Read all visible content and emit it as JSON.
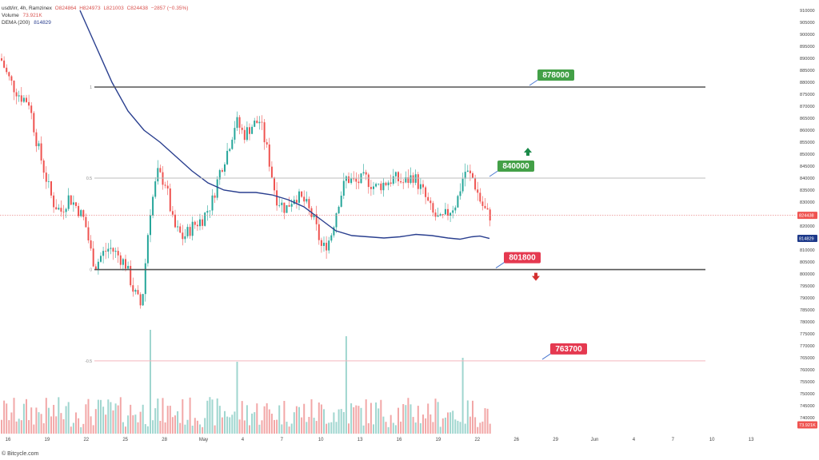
{
  "header": {
    "symbol_line": "usdt/irr, 4h, Ramzinex",
    "o": "O824864",
    "h": "H824973",
    "l": "L821003",
    "c": "C824438",
    "change": "−2857 (−0.35%)",
    "volume_label": "Volume",
    "volume_value": "73.921K",
    "ema_label": "DEMA (200)",
    "ema_value": "814829"
  },
  "footer": {
    "text": "© Bitcycle.com"
  },
  "chart_data": {
    "type": "candlestick",
    "price_axis": {
      "min": 735000,
      "max": 910000,
      "step": 5000,
      "current_price_label": "824438",
      "ema_label": "814829",
      "volume_label": "73.921K"
    },
    "time_axis": {
      "ticks": [
        "16",
        "19",
        "22",
        "25",
        "28",
        "May",
        "4",
        "7",
        "10",
        "13",
        "16",
        "19",
        "22",
        "26",
        "29",
        "Jun",
        "4",
        "7",
        "10",
        "13"
      ]
    },
    "levels": [
      {
        "value": 878000,
        "fib": "1",
        "label": "878000",
        "color": "#43a047",
        "line": "#555555"
      },
      {
        "value": 840000,
        "fib": "0.5",
        "label": "840000",
        "color": "#43a047",
        "line": "#bdbdbd",
        "arrow": "up"
      },
      {
        "value": 801800,
        "fib": "0",
        "label": "801800",
        "color": "#e53950",
        "line": "#555555",
        "arrow": "down"
      },
      {
        "value": 763700,
        "fib": "-0.5",
        "label": "763700",
        "color": "#e53950",
        "line": "#f4b6bd"
      }
    ],
    "price_path": [
      [
        0,
        890000
      ],
      [
        8,
        883000
      ],
      [
        16,
        878000
      ],
      [
        25,
        874000
      ],
      [
        35,
        872000
      ],
      [
        45,
        855000
      ],
      [
        55,
        842000
      ],
      [
        65,
        830000
      ],
      [
        75,
        826000
      ],
      [
        85,
        832000
      ],
      [
        95,
        828000
      ],
      [
        105,
        822000
      ],
      [
        112,
        810000
      ],
      [
        118,
        803000
      ],
      [
        126,
        808000
      ],
      [
        136,
        811000
      ],
      [
        146,
        808000
      ],
      [
        156,
        804000
      ],
      [
        166,
        793000
      ],
      [
        176,
        786000
      ],
      [
        186,
        825000
      ],
      [
        196,
        842000
      ],
      [
        206,
        838000
      ],
      [
        216,
        820000
      ],
      [
        228,
        815000
      ],
      [
        240,
        820000
      ],
      [
        252,
        823000
      ],
      [
        264,
        830000
      ],
      [
        274,
        843000
      ],
      [
        284,
        852000
      ],
      [
        294,
        864000
      ],
      [
        304,
        858000
      ],
      [
        314,
        862000
      ],
      [
        324,
        864000
      ],
      [
        334,
        850000
      ],
      [
        344,
        832000
      ],
      [
        356,
        827000
      ],
      [
        368,
        833000
      ],
      [
        380,
        830000
      ],
      [
        392,
        822000
      ],
      [
        402,
        810000
      ],
      [
        412,
        815000
      ],
      [
        422,
        830000
      ],
      [
        432,
        840000
      ],
      [
        444,
        838000
      ],
      [
        456,
        840000
      ],
      [
        468,
        836000
      ],
      [
        480,
        838000
      ],
      [
        492,
        840000
      ],
      [
        504,
        838000
      ],
      [
        516,
        841000
      ],
      [
        528,
        834000
      ],
      [
        540,
        825000
      ],
      [
        550,
        822000
      ],
      [
        560,
        826000
      ],
      [
        570,
        830000
      ],
      [
        580,
        843000
      ],
      [
        590,
        840000
      ],
      [
        600,
        830000
      ],
      [
        608,
        825000
      ],
      [
        612,
        824438
      ]
    ],
    "ema_path": [
      [
        100,
        910000
      ],
      [
        120,
        895000
      ],
      [
        140,
        880000
      ],
      [
        160,
        868000
      ],
      [
        180,
        860000
      ],
      [
        200,
        855000
      ],
      [
        220,
        849000
      ],
      [
        240,
        843000
      ],
      [
        260,
        838000
      ],
      [
        280,
        835000
      ],
      [
        300,
        834000
      ],
      [
        320,
        834000
      ],
      [
        340,
        833000
      ],
      [
        360,
        831000
      ],
      [
        380,
        828000
      ],
      [
        400,
        823000
      ],
      [
        420,
        818000
      ],
      [
        440,
        816000
      ],
      [
        460,
        815500
      ],
      [
        480,
        815000
      ],
      [
        500,
        815500
      ],
      [
        520,
        816500
      ],
      [
        540,
        816000
      ],
      [
        560,
        815000
      ],
      [
        575,
        814500
      ],
      [
        590,
        815500
      ],
      [
        600,
        815800
      ],
      [
        612,
        814829
      ]
    ]
  }
}
